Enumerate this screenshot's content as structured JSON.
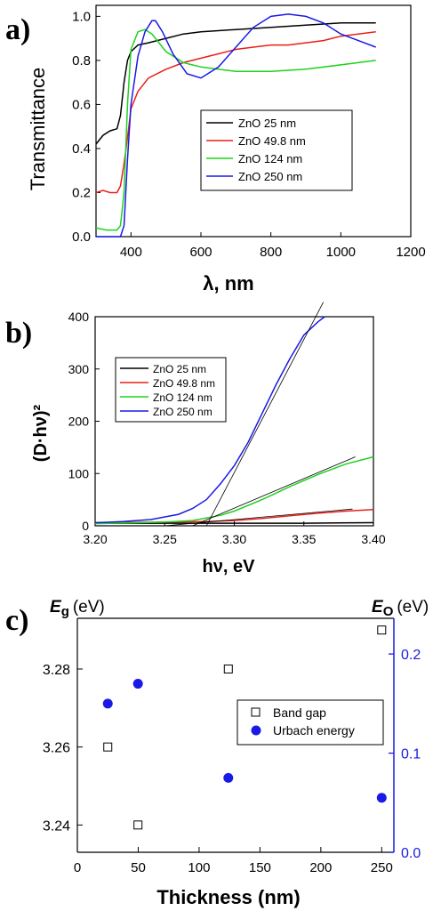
{
  "chart_data": [
    {
      "type": "line",
      "panel_label": "a)",
      "xlabel": "λ, nm",
      "ylabel": "Transmittance",
      "xlim": [
        300,
        1200
      ],
      "ylim": [
        0.0,
        1.05
      ],
      "xticks": [
        "400",
        "600",
        "800",
        "1000",
        "1200"
      ],
      "yticks": [
        "0.0",
        "0.2",
        "0.4",
        "0.6",
        "0.8",
        "1.0"
      ],
      "legend_position": "center-right",
      "series": [
        {
          "name": "ZnO 25 nm",
          "color": "#000000",
          "x": [
            300,
            320,
            340,
            360,
            370,
            380,
            390,
            400,
            420,
            450,
            500,
            550,
            600,
            700,
            800,
            900,
            1000,
            1100
          ],
          "y": [
            0.42,
            0.46,
            0.48,
            0.49,
            0.55,
            0.7,
            0.8,
            0.84,
            0.87,
            0.88,
            0.9,
            0.92,
            0.93,
            0.94,
            0.95,
            0.96,
            0.97,
            0.97
          ]
        },
        {
          "name": "ZnO 49.8 nm",
          "color": "#e8201a",
          "x": [
            300,
            320,
            340,
            360,
            370,
            380,
            390,
            400,
            420,
            450,
            500,
            550,
            600,
            650,
            700,
            750,
            800,
            850,
            900,
            950,
            1000,
            1050,
            1100
          ],
          "y": [
            0.2,
            0.21,
            0.2,
            0.2,
            0.23,
            0.33,
            0.45,
            0.58,
            0.66,
            0.72,
            0.76,
            0.79,
            0.81,
            0.83,
            0.85,
            0.86,
            0.87,
            0.87,
            0.88,
            0.89,
            0.91,
            0.92,
            0.93
          ]
        },
        {
          "name": "ZnO 124 nm",
          "color": "#1fd21f",
          "x": [
            300,
            330,
            360,
            370,
            380,
            390,
            400,
            420,
            440,
            460,
            480,
            500,
            550,
            600,
            700,
            800,
            900,
            1000,
            1100
          ],
          "y": [
            0.04,
            0.03,
            0.03,
            0.05,
            0.2,
            0.6,
            0.85,
            0.93,
            0.94,
            0.92,
            0.88,
            0.84,
            0.79,
            0.77,
            0.75,
            0.75,
            0.76,
            0.78,
            0.8
          ]
        },
        {
          "name": "ZnO 250 nm",
          "color": "#1a1ae6",
          "x": [
            300,
            370,
            380,
            390,
            400,
            420,
            440,
            460,
            470,
            490,
            520,
            560,
            600,
            650,
            700,
            750,
            800,
            850,
            900,
            950,
            1000,
            1050,
            1100
          ],
          "y": [
            0.0,
            0.0,
            0.05,
            0.35,
            0.6,
            0.82,
            0.93,
            0.98,
            0.98,
            0.93,
            0.83,
            0.74,
            0.72,
            0.77,
            0.86,
            0.95,
            1.0,
            1.01,
            1.0,
            0.97,
            0.92,
            0.89,
            0.86
          ]
        }
      ]
    },
    {
      "type": "line",
      "panel_label": "b)",
      "xlabel": "hν, eV",
      "ylabel": "(D·hν)²",
      "xlim": [
        3.2,
        3.4
      ],
      "ylim": [
        0,
        400
      ],
      "xticks": [
        "3.20",
        "3.25",
        "3.30",
        "3.35",
        "3.40"
      ],
      "yticks": [
        "0",
        "100",
        "200",
        "300",
        "400"
      ],
      "legend_position": "upper-left",
      "series": [
        {
          "name": "ZnO 25 nm",
          "color": "#000000",
          "x": [
            3.2,
            3.25,
            3.3,
            3.35,
            3.4
          ],
          "y": [
            5,
            5,
            5,
            5,
            6
          ]
        },
        {
          "name": "ZnO 49.8 nm",
          "color": "#e8201a",
          "x": [
            3.2,
            3.25,
            3.28,
            3.3,
            3.32,
            3.34,
            3.36,
            3.38,
            3.4
          ],
          "y": [
            6,
            7,
            8,
            10,
            14,
            19,
            24,
            28,
            31
          ]
        },
        {
          "name": "ZnO 124 nm",
          "color": "#1fd21f",
          "x": [
            3.2,
            3.25,
            3.27,
            3.29,
            3.3,
            3.32,
            3.34,
            3.36,
            3.38,
            3.4
          ],
          "y": [
            4,
            7,
            10,
            20,
            28,
            50,
            75,
            98,
            118,
            132
          ]
        },
        {
          "name": "ZnO 250 nm",
          "color": "#1a1ae6",
          "x": [
            3.2,
            3.22,
            3.24,
            3.26,
            3.27,
            3.28,
            3.29,
            3.3,
            3.31,
            3.32,
            3.33,
            3.34,
            3.35,
            3.36,
            3.365
          ],
          "y": [
            6,
            8,
            12,
            22,
            33,
            50,
            80,
            115,
            160,
            215,
            270,
            320,
            365,
            390,
            400
          ]
        }
      ],
      "fit_lines": [
        {
          "x": [
            3.28,
            3.364
          ],
          "y": [
            0,
            428
          ]
        },
        {
          "x": [
            3.27,
            3.387
          ],
          "y": [
            0,
            132
          ]
        },
        {
          "x": [
            3.25,
            3.385
          ],
          "y": [
            0,
            32
          ]
        }
      ]
    },
    {
      "type": "scatter",
      "panel_label": "c)",
      "xlabel": "Thickness (nm)",
      "ylabel_left": "E",
      "ylabel_left_sub": "g",
      "ylabel_left_unit": "(eV)",
      "ylabel_right": "E",
      "ylabel_right_sub": "O",
      "ylabel_right_unit": "(eV)",
      "xlim": [
        0,
        260
      ],
      "ylim_left": [
        3.233,
        3.293
      ],
      "ylim_right": [
        0.0,
        0.236
      ],
      "xticks": [
        "0",
        "50",
        "100",
        "150",
        "200",
        "250"
      ],
      "yticks_left": [
        "3.24",
        "3.26",
        "3.28"
      ],
      "yticks_right": [
        "0.0",
        "0.1",
        "0.2"
      ],
      "right_axis_color": "#1a1ae6",
      "legend_position": "center-right",
      "series": [
        {
          "name": "Band gap",
          "marker": "open-square",
          "color": "#000000",
          "axis": "left",
          "x": [
            25,
            49.8,
            124,
            250
          ],
          "y": [
            3.26,
            3.24,
            3.28,
            3.29
          ]
        },
        {
          "name": "Urbach energy",
          "marker": "filled-circle",
          "color": "#1a1ae6",
          "axis": "right",
          "x": [
            25,
            49.8,
            124,
            250
          ],
          "y": [
            0.15,
            0.17,
            0.075,
            0.055
          ]
        }
      ]
    }
  ]
}
